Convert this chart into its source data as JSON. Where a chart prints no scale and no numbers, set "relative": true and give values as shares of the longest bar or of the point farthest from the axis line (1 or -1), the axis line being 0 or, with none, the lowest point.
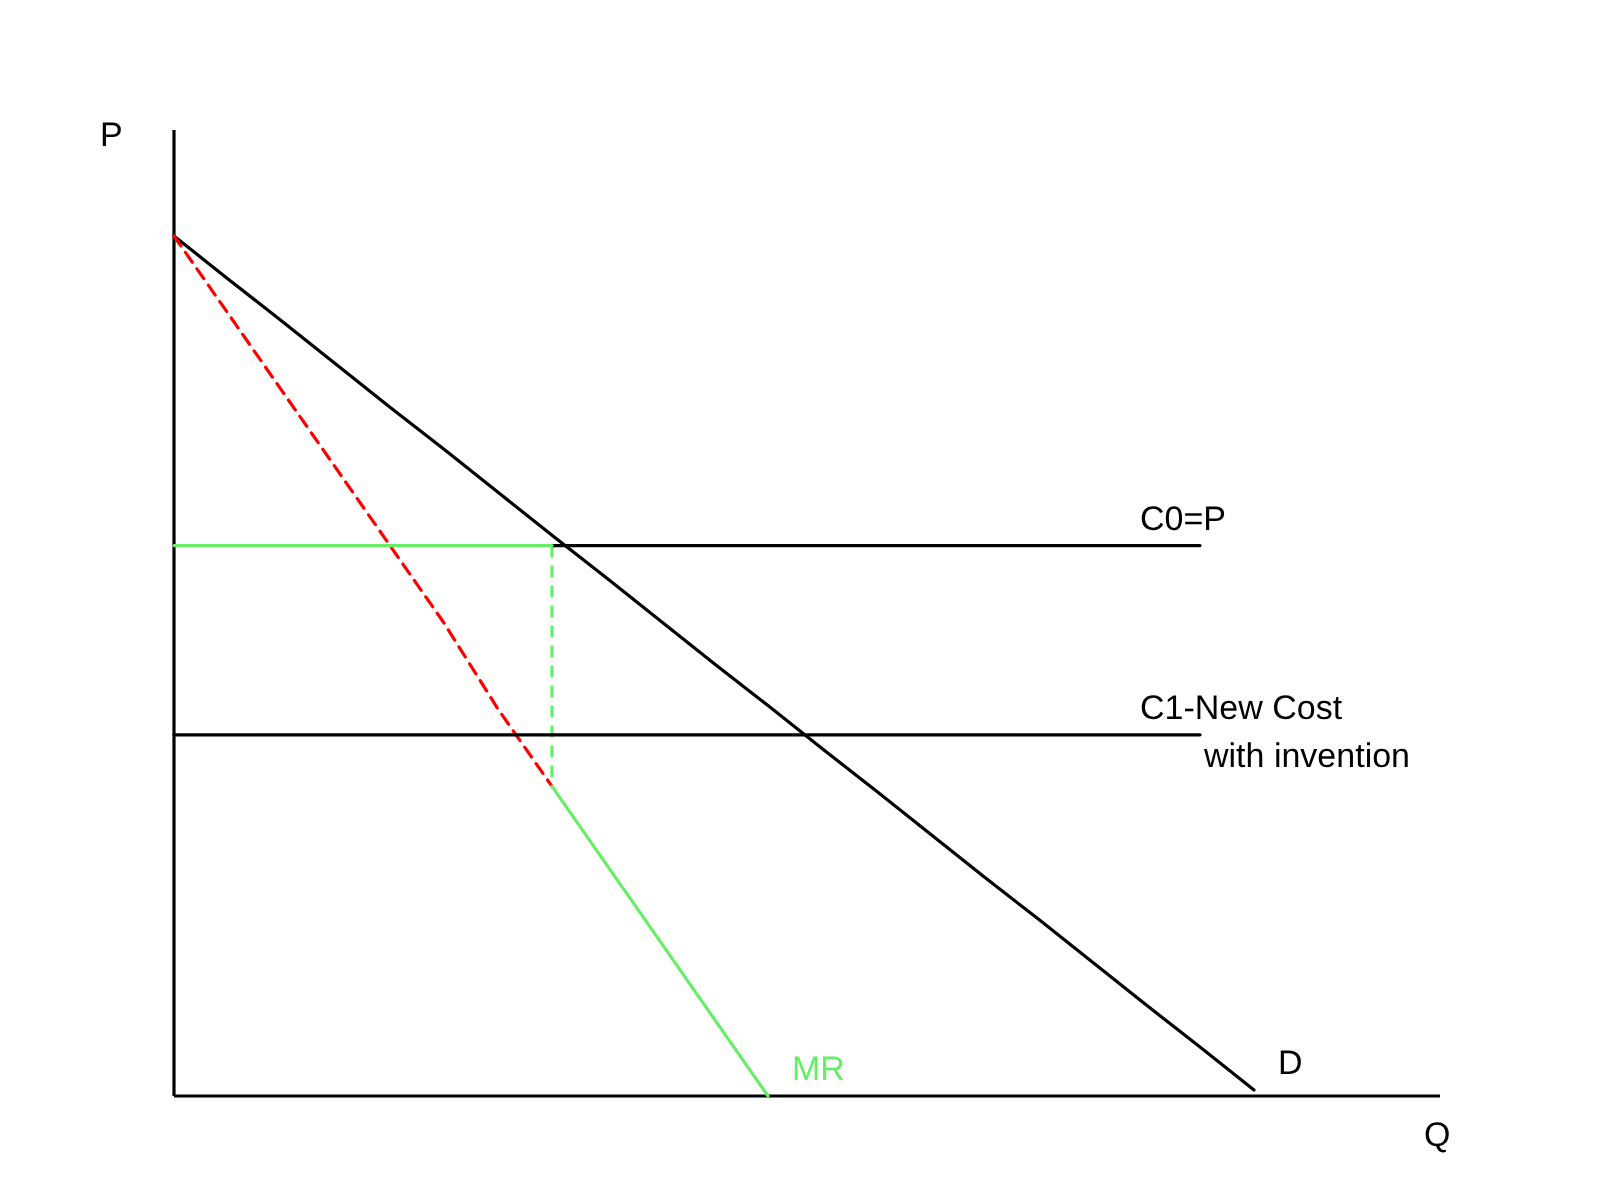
{
  "chart_data": {
    "type": "line",
    "relative": true,
    "xlabel": "Q",
    "ylabel": "P",
    "categories": [
      null,
      null,
      null,
      null,
      null,
      null,
      null,
      null,
      null,
      null,
      null,
      null,
      null,
      null,
      null,
      null,
      null,
      null,
      null,
      null,
      null
    ],
    "series": [
      {
        "name": "D",
        "color": "#000000",
        "values": [
          1,
          0.95,
          0.901,
          0.851,
          0.801,
          0.752,
          0.702,
          0.652,
          0.603,
          0.553,
          0.503,
          0.454,
          0.404,
          0.355,
          0.305,
          0.255,
          0.206,
          0.156,
          0.106,
          0.057,
          0.007
        ]
      },
      {
        "color": "#ff0000",
        "line_style": "dashed",
        "values": [
          1,
          0.91,
          0.82,
          0.73,
          0.64,
          0.55,
          0.45,
          0.36,
          null,
          null,
          null,
          null,
          null,
          null,
          null,
          null,
          null,
          null,
          null,
          null,
          null
        ]
      },
      {
        "name": "C0=P",
        "color": "#000000",
        "values": [
          null,
          null,
          null,
          null,
          null,
          null,
          null,
          0.64,
          0.64,
          0.64,
          0.64,
          0.64,
          0.64,
          0.64,
          0.64,
          0.64,
          0.64,
          0.64,
          0.64,
          0.64,
          null
        ]
      },
      {
        "name": "C1-New Cost\nwith invention",
        "color": "#000000",
        "values": [
          0.42,
          0.42,
          0.42,
          0.42,
          0.42,
          0.42,
          0.42,
          0.42,
          0.42,
          0.42,
          0.42,
          0.42,
          0.42,
          0.42,
          0.42,
          0.42,
          0.42,
          0.42,
          0.42,
          0.42,
          null
        ]
      },
      {
        "color": "#66ee66",
        "values": [
          0.64,
          0.64,
          0.64,
          0.64,
          0.64,
          0.64,
          0.64,
          0.64,
          null,
          null,
          null,
          null,
          null,
          null,
          null,
          null,
          null,
          null,
          null,
          null,
          null
        ]
      },
      {
        "name": "MR",
        "color": "#66ee66",
        "values": [
          null,
          null,
          null,
          null,
          null,
          null,
          null,
          0.36,
          0.27,
          0.18,
          0.09,
          0,
          null,
          null,
          null,
          null,
          null,
          null,
          null,
          null,
          null
        ]
      }
    ]
  }
}
